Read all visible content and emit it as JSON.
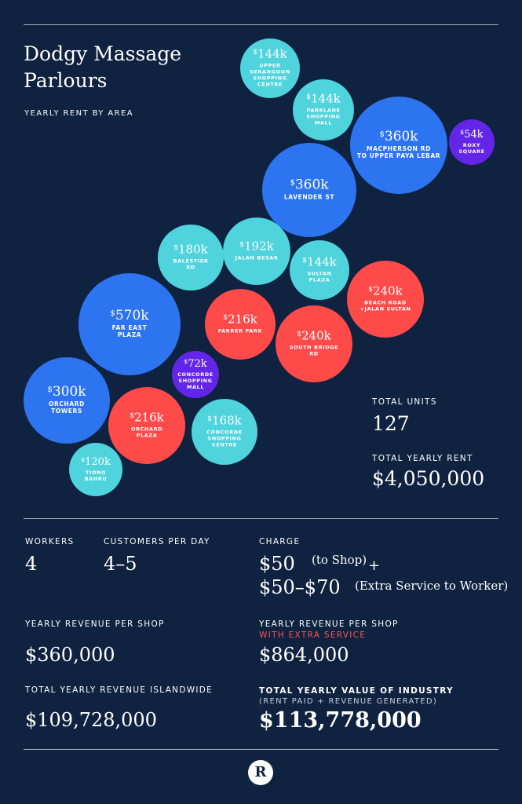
{
  "header": {
    "title_line1": "Dodgy Massage",
    "title_line2": "Parlours",
    "subtitle": "YEARLY RENT BY AREA"
  },
  "chart_data": {
    "type": "bubble",
    "title": "Dodgy Massage Parlours",
    "subtitle": "YEARLY RENT BY AREA",
    "unit": "$k per year",
    "colors": {
      "cyan": "#4fd3dc",
      "blue": "#2d74f0",
      "red": "#ff4a4a",
      "purple": "#6326e8"
    },
    "bubbles": [
      {
        "value": 144,
        "display": "144k",
        "label": [
          "UPPER",
          "SERANGOON",
          "SHOPPING",
          "CENTRE"
        ],
        "color": "cyan"
      },
      {
        "value": 144,
        "display": "144k",
        "label": [
          "PARKLANE",
          "SHOPPING",
          "MALL"
        ],
        "color": "cyan"
      },
      {
        "value": 360,
        "display": "360k",
        "label": [
          "MACPHERSON RD",
          "TO UPPER PAYA LEBAR"
        ],
        "color": "blue"
      },
      {
        "value": 54,
        "display": "54k",
        "label": [
          "ROXY",
          "SQUARE"
        ],
        "color": "purple"
      },
      {
        "value": 360,
        "display": "360k",
        "label": [
          "LAVENDER ST"
        ],
        "color": "blue"
      },
      {
        "value": 180,
        "display": "180k",
        "label": [
          "BALESTIER",
          "RD"
        ],
        "color": "cyan"
      },
      {
        "value": 192,
        "display": "192k",
        "label": [
          "JALAN BESAR"
        ],
        "color": "cyan"
      },
      {
        "value": 144,
        "display": "144k",
        "label": [
          "SULTAN",
          "PLAZA"
        ],
        "color": "cyan"
      },
      {
        "value": 240,
        "display": "240k",
        "label": [
          "BEACH ROAD",
          "+JALAN SULTAN"
        ],
        "color": "red"
      },
      {
        "value": 570,
        "display": "570k",
        "label": [
          "FAR EAST",
          "PLAZA"
        ],
        "color": "blue"
      },
      {
        "value": 216,
        "display": "216k",
        "label": [
          "FARRER PARK"
        ],
        "color": "red"
      },
      {
        "value": 240,
        "display": "240k",
        "label": [
          "SOUTH BRIDGE",
          "RD"
        ],
        "color": "red"
      },
      {
        "value": 72,
        "display": "72k",
        "label": [
          "CONCORDE",
          "SHOPPING",
          "MALL"
        ],
        "color": "purple"
      },
      {
        "value": 300,
        "display": "300k",
        "label": [
          "ORCHARD",
          "TOWERS"
        ],
        "color": "blue"
      },
      {
        "value": 216,
        "display": "216k",
        "label": [
          "ORCHARD",
          "PLAZA"
        ],
        "color": "red"
      },
      {
        "value": 168,
        "display": "168k",
        "label": [
          "CONCORDE",
          "SHOPPING",
          "CENTRE"
        ],
        "color": "cyan"
      },
      {
        "value": 120,
        "display": "120k",
        "label": [
          "TIONG",
          "BAHRU"
        ],
        "color": "cyan"
      }
    ]
  },
  "totals": {
    "units_label": "TOTAL UNITS",
    "units_value": "127",
    "rent_label": "TOTAL YEARLY RENT",
    "rent_value": "$4,050,000"
  },
  "stats": {
    "workers_label": "WORKERS",
    "workers_value": "4",
    "customers_label": "CUSTOMERS PER DAY",
    "customers_value": "4–5",
    "charge_label": "CHARGE",
    "charge_shop_value": "$50",
    "charge_shop_note": "(to Shop)",
    "plus": "+",
    "charge_extra_value": "$50–$70",
    "charge_extra_note": "(Extra Service to Worker)",
    "rev_shop_label": "YEARLY REVENUE PER SHOP",
    "rev_shop_value": "$360,000",
    "rev_extra_label": "YEARLY REVENUE PER SHOP",
    "rev_extra_sublabel": "WITH EXTRA SERVICE",
    "rev_extra_value": "$864,000",
    "rev_island_label": "TOTAL YEARLY REVENUE ISLANDWIDE",
    "rev_island_value": "$109,728,000",
    "industry_label": "TOTAL YEARLY VALUE OF INDUSTRY",
    "industry_sublabel": "(RENT PAID + REVENUE GENERATED)",
    "industry_value": "$113,778,000"
  },
  "footer": {
    "logo_letter": "R"
  }
}
